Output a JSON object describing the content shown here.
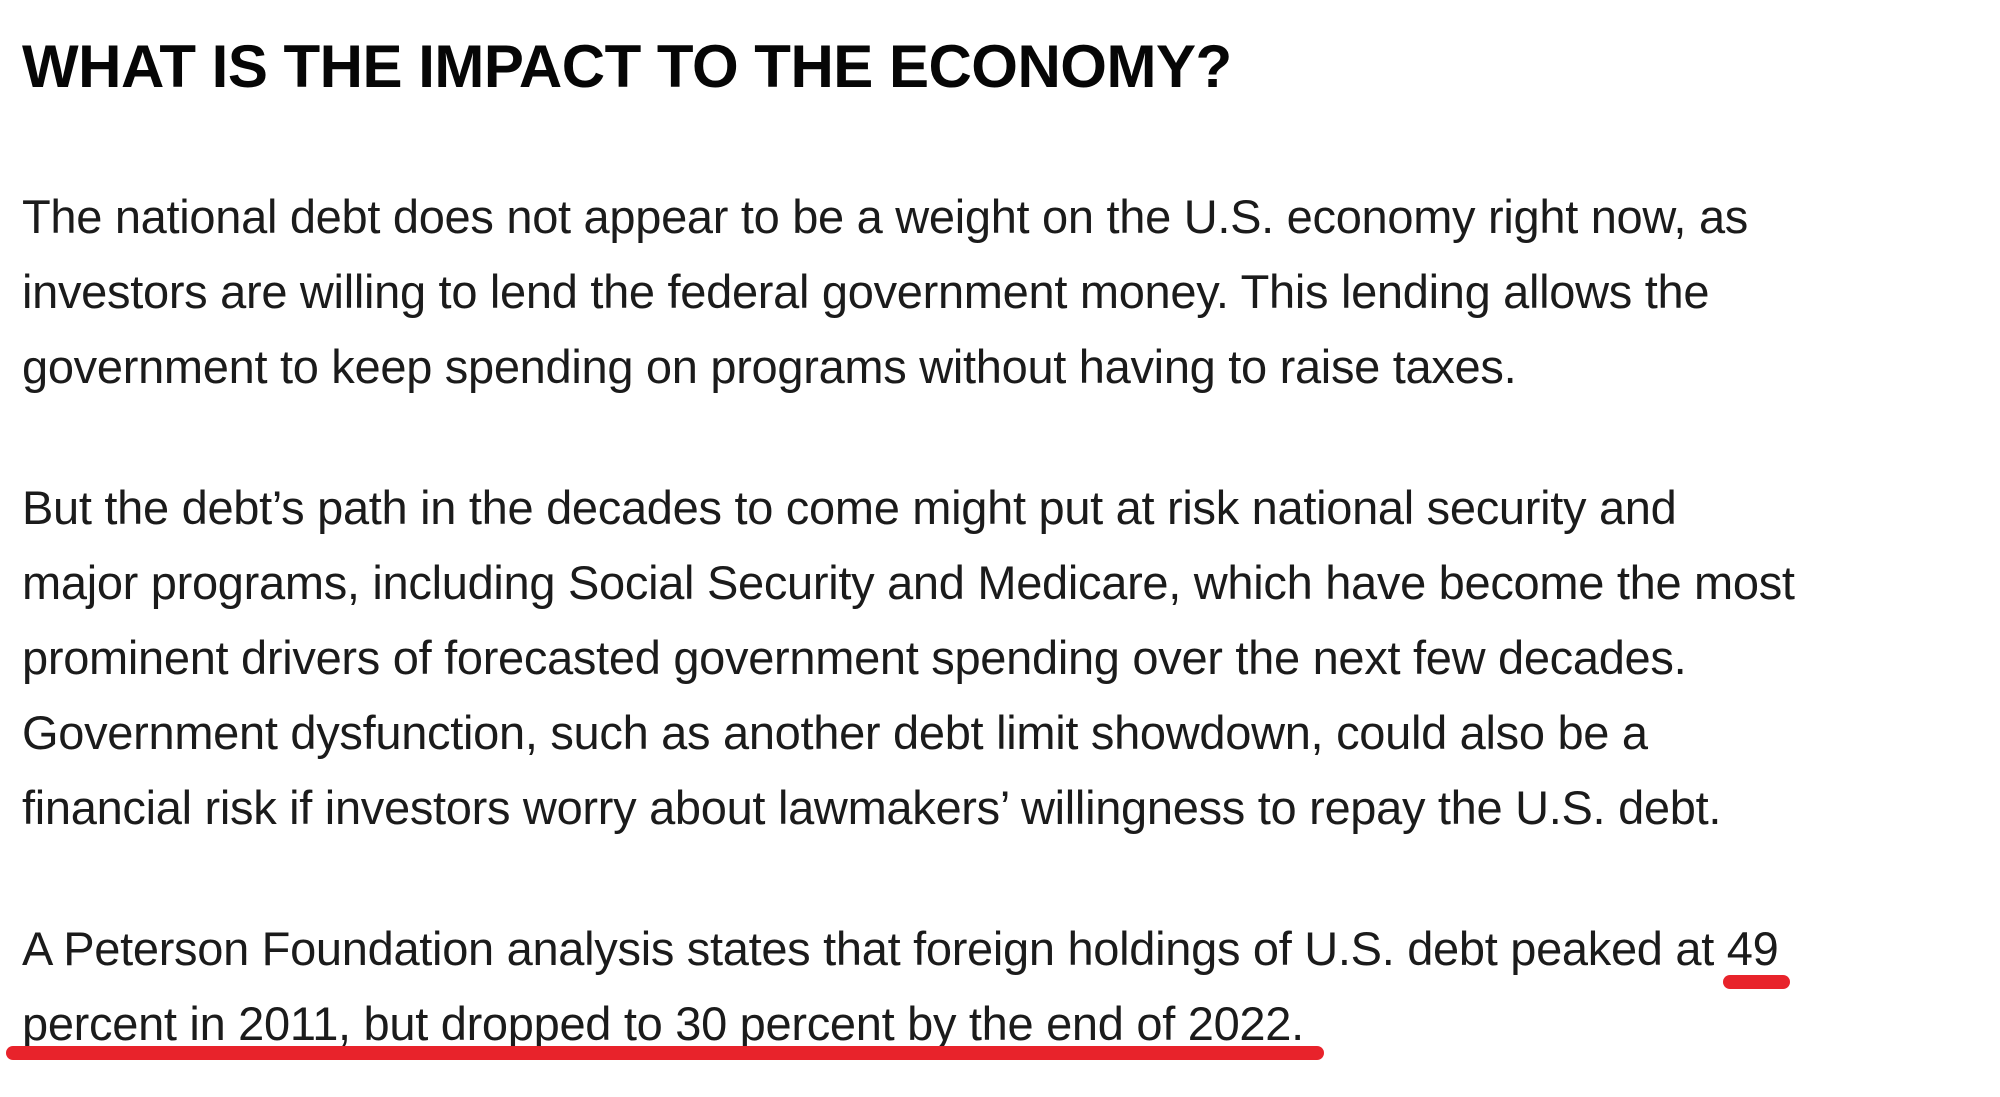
{
  "page": {
    "background_color": "#ffffff",
    "heading_color": "#060606",
    "body_text_color": "#1b1b1b"
  },
  "heading": "WHAT IS THE IMPACT TO THE ECONOMY?",
  "paragraph1": {
    "lines": [
      "The national debt does not appear to be a weight on the U.S. economy right now, as",
      "investors are willing to lend the federal government money. This lending allows the",
      "government to keep spending on programs without having to raise taxes."
    ]
  },
  "paragraph2": {
    "lines": [
      "But the debt’s path in the decades to come might put at risk national security and",
      "major programs, including Social Security and Medicare, which have become the most",
      "prominent drivers of forecasted government spending over the next few decades.",
      "Government dysfunction, such as another debt limit showdown, could also be a",
      "financial risk if investors worry about lawmakers’ willingness to repay the U.S. debt."
    ]
  },
  "paragraph3": {
    "line1_text": "A Peterson Foundation analysis states that foreign holdings of U.S. debt peaked at ",
    "line1_underlined": "49",
    "line2_underlined": "percent in 2011, but dropped to 30 percent by the end of 2022."
  },
  "annotation": {
    "type": "red marker underline",
    "underline_color": "#e8232b",
    "underlined_text": "49 percent in 2011, but dropped to 30 percent by the end of 2022."
  }
}
